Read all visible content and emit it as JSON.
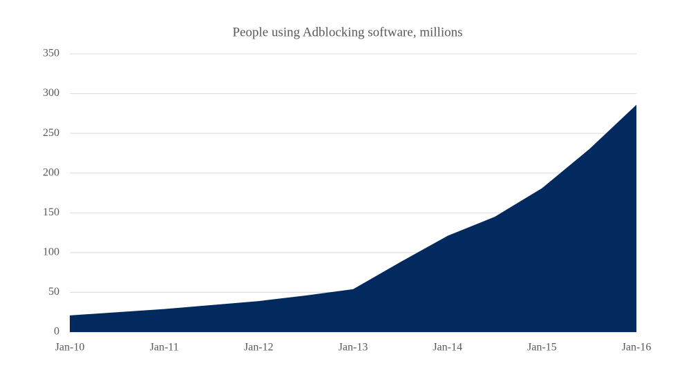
{
  "chart_data": {
    "type": "area",
    "title": "People using Adblocking  software, millions",
    "categories": [
      "Jan-10",
      null,
      "Jan-11",
      null,
      "Jan-12",
      null,
      "Jan-13",
      null,
      "Jan-14",
      null,
      "Jan-15",
      null,
      "Jan-16"
    ],
    "values": [
      21,
      25,
      29,
      34,
      39,
      46,
      54,
      88,
      121,
      145,
      181,
      230,
      286
    ],
    "color": "#022a5f",
    "ylim": [
      0,
      350
    ],
    "yticks": [
      0,
      50,
      100,
      150,
      200,
      250,
      300,
      350
    ],
    "grid": true
  }
}
